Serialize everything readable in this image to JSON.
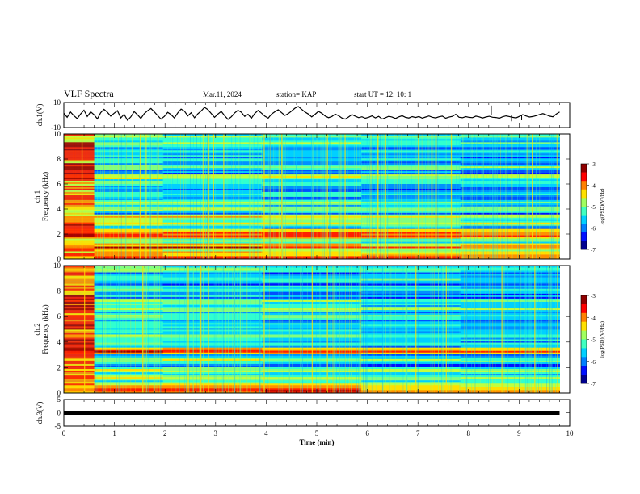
{
  "header": {
    "title": "VLF Spectra",
    "date": "Mar.11, 2024",
    "station": "station= KAP",
    "start": "start  UT =   12: 10: 1"
  },
  "chart_data": [
    {
      "type": "line",
      "ylabel": "ch.1(V)",
      "ylim": [
        -10,
        10
      ],
      "y_ticks": [
        "10",
        "-10"
      ],
      "x_range_min": [
        0,
        9.8
      ],
      "values": [
        1.5,
        -1.8,
        2.4,
        -0.5,
        -2.9,
        0.8,
        3.9,
        -1.2,
        2.6,
        0.3,
        -3.1,
        1.9,
        4.6,
        2.2,
        -0.9,
        1.4,
        3.5,
        -2.3,
        0.6,
        -4.2,
        -1.5,
        2.7,
        0.2,
        -2.8,
        1.1,
        3.4,
        5.2,
        2.5,
        -0.4,
        -3.3,
        -1.1,
        2.1,
        0.4,
        -2.4,
        1.6,
        4.8,
        3.1,
        -0.7,
        1.8,
        -2.2,
        0.9,
        3.3,
        6.1,
        4.4,
        1.2,
        -1.9,
        0.8,
        2.9,
        -0.6,
        -3.5,
        -1.4,
        1.7,
        3.8,
        2.2,
        -1.1,
        0.5,
        -2.6,
        1.3,
        3.7,
        1.5,
        -0.9,
        -2.5,
        0.7,
        2.6,
        4.2,
        1.9,
        -0.3,
        1.1,
        3.2,
        5.5,
        6.8,
        4.6,
        2.4,
        0.8,
        -1.5,
        0.6,
        2.9,
        1.4,
        -0.8,
        -2.1,
        -1.2,
        0.7,
        -0.5,
        -2.4,
        -3.3,
        -1.6,
        0.4,
        -0.9,
        -2.1,
        -1.4,
        -2.6,
        -1.8,
        -0.7,
        -2.3,
        -1.1,
        -3.2,
        -2.2,
        -1.0,
        -1.7,
        -2.8,
        -1.5,
        -0.6,
        -1.9,
        -2.4,
        -1.3,
        -2.0,
        -1.2,
        -2.5,
        -1.6,
        -0.8,
        -1.8,
        -2.3,
        -1.4,
        -0.9,
        -2.6,
        -1.7,
        -1.1,
        0.6,
        -1.8,
        -2.2,
        -1.3,
        -1.9,
        -2.1,
        -0.9,
        -1.5,
        -2.4,
        -1.6,
        -1.0,
        -1.8,
        -2.0,
        -2.6,
        -1.4,
        -0.7,
        -1.2,
        -1.9,
        -2.3,
        -1.1,
        0.3,
        -0.8,
        -1.6,
        -1.2,
        -0.5,
        0.4,
        1.1,
        0.2,
        -0.9,
        -1.4,
        0.7,
        2.4
      ],
      "spikes": [
        {
          "t": 8.45,
          "v": 7.5
        },
        {
          "t": 8.85,
          "v": -5.0
        },
        {
          "t": 9.05,
          "v": -4.2
        }
      ]
    },
    {
      "type": "heatmap",
      "ylabel": "ch.1\nFrequency (kHz)",
      "ylim": [
        0,
        10
      ],
      "y_ticks": [
        "0",
        "2",
        "4",
        "6",
        "8",
        "10"
      ],
      "colorbar": {
        "label": "log(PSD)(V²/Hz)",
        "range": [
          -7,
          -3
        ],
        "ticks": [
          "-3",
          "-4",
          "-5",
          "-6",
          "-7"
        ],
        "colors": [
          "#000090",
          "#0010ff",
          "#0080ff",
          "#00d0ff",
          "#40ffc0",
          "#a0ff60",
          "#ffe000",
          "#ff8000",
          "#ff0000",
          "#900000"
        ]
      },
      "bands_khz": [
        {
          "f": 0.15,
          "level": 0.9
        },
        {
          "f": 0.55,
          "level": 0.75
        },
        {
          "f": 1.0,
          "level": 0.85
        },
        {
          "f": 1.5,
          "level": 0.6
        },
        {
          "f": 1.9,
          "level": 0.9
        },
        {
          "f": 2.15,
          "level": 0.8
        },
        {
          "f": 2.9,
          "level": 0.65
        },
        {
          "f": 3.4,
          "level": 0.7
        },
        {
          "f": 4.0,
          "level": 0.65
        },
        {
          "f": 4.55,
          "level": 0.55
        },
        {
          "f": 5.2,
          "level": 0.45
        },
        {
          "f": 6.1,
          "level": 0.5
        },
        {
          "f": 6.6,
          "level": 0.7
        },
        {
          "f": 7.4,
          "level": 0.55
        },
        {
          "f": 7.9,
          "level": 0.45
        },
        {
          "f": 8.6,
          "level": 0.45
        },
        {
          "f": 9.3,
          "level": 0.5
        },
        {
          "f": 9.8,
          "level": 0.55
        }
      ],
      "vertical_emissions_min": [
        0.35,
        1.35,
        1.5,
        1.6,
        2.35,
        2.75,
        2.85,
        2.95,
        3.15,
        3.95,
        4.3,
        5.2,
        5.55,
        6.2,
        6.35,
        7.0,
        7.35,
        7.65,
        9.25,
        9.75
      ]
    },
    {
      "type": "heatmap",
      "ylabel": "ch.2\nFrequency (kHz)",
      "ylim": [
        0,
        10
      ],
      "y_ticks": [
        "0",
        "2",
        "4",
        "6",
        "8",
        "10"
      ],
      "colorbar": {
        "label": "log(PSD)(V²/Hz)",
        "range": [
          -7,
          -3
        ],
        "ticks": [
          "-3",
          "-4",
          "-5",
          "-6",
          "-7"
        ],
        "colors": [
          "#000090",
          "#0010ff",
          "#0080ff",
          "#00d0ff",
          "#40ffc0",
          "#a0ff60",
          "#ffe000",
          "#ff8000",
          "#ff0000",
          "#900000"
        ]
      },
      "bands_khz": [
        {
          "f": 0.2,
          "level": 0.9
        },
        {
          "f": 0.6,
          "level": 0.7
        },
        {
          "f": 1.2,
          "level": 0.6
        },
        {
          "f": 1.8,
          "level": 0.6
        },
        {
          "f": 2.6,
          "level": 0.6
        },
        {
          "f": 3.3,
          "level": 0.85
        },
        {
          "f": 3.9,
          "level": 0.5
        },
        {
          "f": 4.5,
          "level": 0.55
        },
        {
          "f": 5.4,
          "level": 0.5
        },
        {
          "f": 6.0,
          "level": 0.55
        },
        {
          "f": 6.6,
          "level": 0.6
        },
        {
          "f": 7.2,
          "level": 0.55
        },
        {
          "f": 8.1,
          "level": 0.5
        },
        {
          "f": 8.9,
          "level": 0.45
        },
        {
          "f": 9.7,
          "level": 0.55
        }
      ],
      "vertical_emissions_min": [
        0.4,
        1.55,
        2.45,
        2.7,
        2.85,
        3.95,
        4.9,
        5.2,
        5.85,
        6.95,
        7.55,
        8.65,
        9.3,
        9.75
      ]
    },
    {
      "type": "line",
      "ylabel": "ch.3(V)",
      "ylim": [
        -5,
        5
      ],
      "y_ticks": [
        "5",
        "0",
        "-5"
      ],
      "level": 0,
      "x_range_min": [
        0,
        9.8
      ],
      "xlabel": "Time  (min)",
      "x_ticks": [
        "0",
        "1",
        "2",
        "3",
        "4",
        "5",
        "6",
        "7",
        "8",
        "9",
        "10"
      ]
    }
  ]
}
